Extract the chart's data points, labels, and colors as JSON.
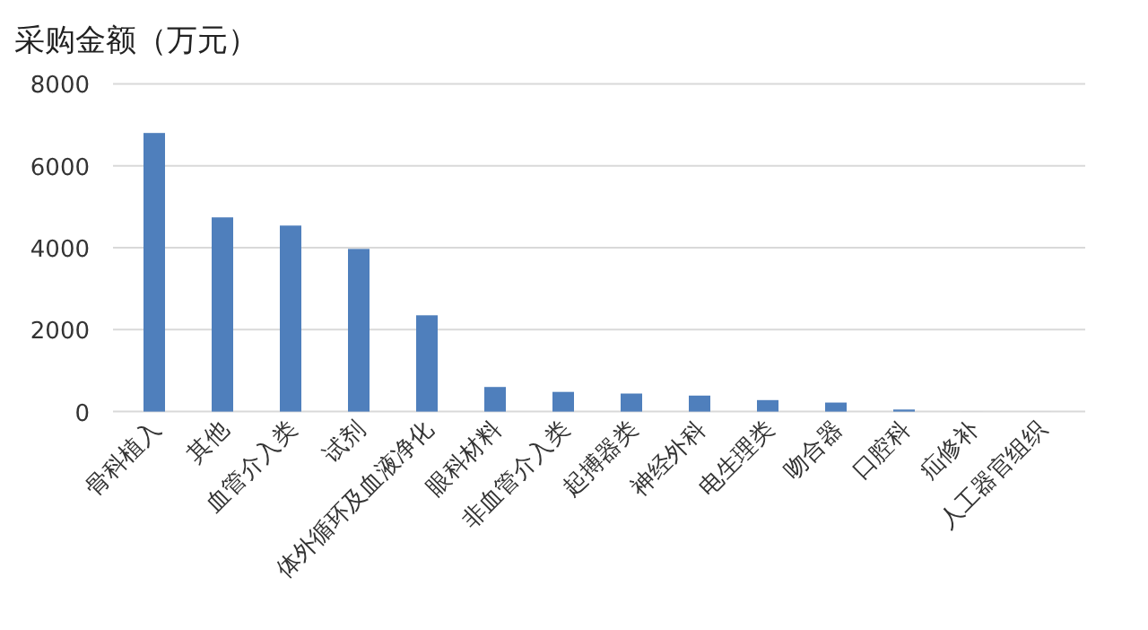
{
  "chart_data": {
    "type": "bar",
    "title": "采购金额（万元）",
    "categories": [
      "骨科植入",
      "其他",
      "血管介入类",
      "试剂",
      "体外循环及血液净化",
      "眼科材料",
      "非血管介入类",
      "起搏器类",
      "神经外科",
      "电生理类",
      "吻合器",
      "口腔科",
      "疝修补",
      "人工器官组织"
    ],
    "values": [
      6800,
      4740,
      4540,
      3970,
      2350,
      600,
      480,
      440,
      390,
      280,
      220,
      50,
      0,
      0
    ],
    "color": "#4f7fbc",
    "ylim": [
      0,
      8000
    ],
    "yticks": [
      0,
      2000,
      4000,
      6000,
      8000
    ],
    "grid": "y"
  }
}
